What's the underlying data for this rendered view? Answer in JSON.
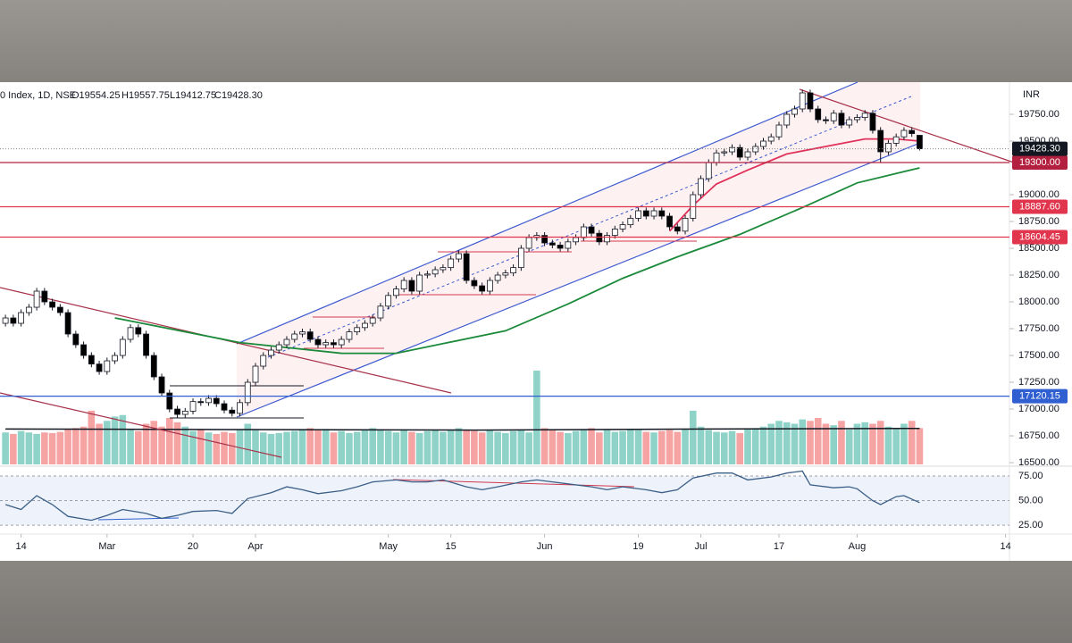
{
  "chart_data": {
    "type": "candlestick",
    "title": "0 Index, 1D, NSE",
    "ohlc_labels": [
      "O19554.25",
      "H19557.75",
      "L19412.75",
      "C19428.30"
    ],
    "currency": "INR",
    "xlim": [
      -0.7,
      128.5
    ],
    "xticks": [
      {
        "value": 2,
        "label": "14"
      },
      {
        "value": 13,
        "label": "Mar"
      },
      {
        "value": 24,
        "label": "20"
      },
      {
        "value": 32,
        "label": "Apr"
      },
      {
        "value": 49,
        "label": "May"
      },
      {
        "value": 57,
        "label": "15"
      },
      {
        "value": 69,
        "label": "Jun"
      },
      {
        "value": 81,
        "label": "19"
      },
      {
        "value": 89,
        "label": "Jul"
      },
      {
        "value": 99,
        "label": "17"
      },
      {
        "value": 109,
        "label": "Aug"
      },
      {
        "value": 128,
        "label": "14"
      }
    ],
    "ylim": [
      16467,
      20050
    ],
    "yticks": [
      {
        "value": 19750,
        "label": "19750.00"
      },
      {
        "value": 19500,
        "label": "19500.00"
      },
      {
        "value": 19000,
        "label": "19000.00"
      },
      {
        "value": 18750,
        "label": "18750.00"
      },
      {
        "value": 18500,
        "label": "18500.00"
      },
      {
        "value": 18250,
        "label": "18250.00"
      },
      {
        "value": 18000,
        "label": "18000.00"
      },
      {
        "value": 17750,
        "label": "17750.00"
      },
      {
        "value": 17500,
        "label": "17500.00"
      },
      {
        "value": 17250,
        "label": "17250.00"
      },
      {
        "value": 17000,
        "label": "17000.00"
      },
      {
        "value": 16750,
        "label": "16750.00"
      },
      {
        "value": 16500,
        "label": "16500.00"
      }
    ],
    "grid": false,
    "up_color": "#ffffff",
    "down_color": "#000000",
    "candles": {
      "x": [
        0,
        1,
        2,
        3,
        4,
        5,
        6,
        7,
        8,
        9,
        10,
        11,
        12,
        13,
        14,
        15,
        16,
        17,
        18,
        19,
        20,
        21,
        22,
        23,
        24,
        25,
        26,
        27,
        28,
        29,
        30,
        31,
        32,
        33,
        34,
        35,
        36,
        37,
        38,
        39,
        40,
        41,
        42,
        43,
        44,
        45,
        46,
        47,
        48,
        49,
        50,
        51,
        52,
        53,
        54,
        55,
        56,
        57,
        58,
        59,
        60,
        61,
        62,
        63,
        64,
        65,
        66,
        67,
        68,
        69,
        70,
        71,
        72,
        73,
        74,
        75,
        76,
        77,
        78,
        79,
        80,
        81,
        82,
        83,
        84,
        85,
        86,
        87,
        88,
        89,
        90,
        91,
        92,
        93,
        94,
        95,
        96,
        97,
        98,
        99,
        100,
        101,
        102,
        103,
        104,
        105,
        106,
        107,
        108,
        109,
        110,
        111,
        112,
        113,
        114,
        115,
        116,
        117
      ],
      "open": [
        17800,
        17850,
        17800,
        17900,
        17950,
        18100,
        18000,
        17950,
        17900,
        17700,
        17600,
        17500,
        17420,
        17350,
        17450,
        17500,
        17650,
        17760,
        17700,
        17500,
        17300,
        17150,
        17000,
        16950,
        16980,
        17070,
        17060,
        17100,
        17050,
        16990,
        16960,
        17060,
        17250,
        17400,
        17500,
        17550,
        17600,
        17650,
        17700,
        17720,
        17650,
        17600,
        17620,
        17600,
        17650,
        17720,
        17760,
        17800,
        17850,
        17960,
        18060,
        18120,
        18200,
        18100,
        18250,
        18260,
        18300,
        18320,
        18400,
        18450,
        18200,
        18150,
        18100,
        18200,
        18250,
        18270,
        18320,
        18500,
        18600,
        18620,
        18550,
        18530,
        18500,
        18560,
        18600,
        18700,
        18640,
        18560,
        18620,
        18680,
        18720,
        18780,
        18850,
        18800,
        18850,
        18800,
        18700,
        18660,
        18780,
        19000,
        19150,
        19300,
        19390,
        19400,
        19440,
        19350,
        19400,
        19450,
        19500,
        19540,
        19650,
        19750,
        19800,
        19950,
        19800,
        19700,
        19690,
        19760,
        19650,
        19700,
        19720,
        19760,
        19600,
        19400,
        19480,
        19540,
        19600,
        19554.25
      ],
      "high": [
        17880,
        17880,
        17930,
        17980,
        18130,
        18130,
        18030,
        17980,
        17930,
        17730,
        17630,
        17530,
        17450,
        17480,
        17530,
        17680,
        17790,
        17790,
        17730,
        17530,
        17330,
        17180,
        17030,
        17010,
        17100,
        17100,
        17130,
        17130,
        17080,
        17020,
        17090,
        17280,
        17430,
        17530,
        17580,
        17630,
        17680,
        17730,
        17750,
        17750,
        17680,
        17650,
        17650,
        17680,
        17750,
        17790,
        17830,
        17880,
        17990,
        18090,
        18150,
        18230,
        18230,
        18280,
        18290,
        18330,
        18350,
        18430,
        18480,
        18480,
        18230,
        18180,
        18230,
        18280,
        18300,
        18350,
        18530,
        18630,
        18650,
        18650,
        18580,
        18560,
        18590,
        18630,
        18730,
        18730,
        18670,
        18650,
        18710,
        18750,
        18810,
        18880,
        18880,
        18880,
        18880,
        18830,
        18730,
        18810,
        19030,
        19180,
        19330,
        19420,
        19430,
        19470,
        19470,
        19430,
        19480,
        19530,
        19570,
        19680,
        19780,
        19830,
        19980,
        19980,
        19830,
        19730,
        19790,
        19790,
        19730,
        19750,
        19790,
        19790,
        19630,
        19510,
        19570,
        19630,
        19630,
        19557.75
      ],
      "low": [
        17770,
        17770,
        17770,
        17870,
        17920,
        17970,
        17920,
        17870,
        17670,
        17570,
        17470,
        17390,
        17320,
        17320,
        17420,
        17470,
        17620,
        17670,
        17470,
        17270,
        17120,
        16970,
        16920,
        16920,
        16950,
        17030,
        17030,
        17020,
        16960,
        16930,
        16930,
        17030,
        17220,
        17370,
        17470,
        17520,
        17570,
        17620,
        17670,
        17620,
        17570,
        17570,
        17570,
        17570,
        17620,
        17690,
        17730,
        17770,
        17820,
        17930,
        18030,
        18090,
        18070,
        18070,
        18220,
        18230,
        18270,
        18290,
        18370,
        18170,
        18120,
        18070,
        18070,
        18170,
        18220,
        18240,
        18290,
        18470,
        18570,
        18520,
        18500,
        18470,
        18470,
        18530,
        18570,
        18610,
        18530,
        18530,
        18590,
        18650,
        18690,
        18750,
        18770,
        18770,
        18770,
        18670,
        18630,
        18630,
        18750,
        18970,
        19120,
        19270,
        19360,
        19370,
        19320,
        19320,
        19370,
        19420,
        19470,
        19510,
        19620,
        19720,
        19770,
        19770,
        19670,
        19660,
        19660,
        19620,
        19620,
        19670,
        19690,
        19570,
        19300,
        19370,
        19450,
        19510,
        19540,
        19412.75
      ],
      "close": [
        17850,
        17800,
        17900,
        17950,
        18100,
        18000,
        17950,
        17900,
        17700,
        17600,
        17500,
        17420,
        17350,
        17450,
        17500,
        17650,
        17760,
        17700,
        17500,
        17300,
        17150,
        17000,
        16950,
        16980,
        17070,
        17060,
        17100,
        17050,
        16990,
        16960,
        17060,
        17250,
        17400,
        17500,
        17550,
        17600,
        17650,
        17700,
        17720,
        17650,
        17600,
        17620,
        17600,
        17650,
        17720,
        17760,
        17800,
        17850,
        17960,
        18060,
        18120,
        18200,
        18100,
        18250,
        18260,
        18300,
        18320,
        18400,
        18450,
        18200,
        18150,
        18100,
        18200,
        18250,
        18270,
        18320,
        18500,
        18600,
        18620,
        18550,
        18530,
        18500,
        18560,
        18600,
        18700,
        18640,
        18560,
        18620,
        18680,
        18720,
        18780,
        18850,
        18800,
        18850,
        18800,
        18700,
        18660,
        18780,
        19000,
        19150,
        19300,
        19390,
        19400,
        19440,
        19350,
        19400,
        19450,
        19500,
        19540,
        19650,
        19750,
        19800,
        19950,
        19800,
        19700,
        19690,
        19760,
        19650,
        19700,
        19720,
        19760,
        19600,
        19400,
        19480,
        19540,
        19600,
        19570,
        19428.3
      ]
    },
    "moving_averages": [
      {
        "color": "#1b8a3a",
        "x": [
          14,
          30,
          43,
          50,
          56,
          64,
          72,
          79,
          86,
          94,
          102,
          109,
          117
        ],
        "values": [
          17850,
          17620,
          17520,
          17520,
          17610,
          17730,
          17980,
          18220,
          18420,
          18630,
          18880,
          19110,
          19250
        ]
      },
      {
        "color": "#e0325a",
        "x": [
          85,
          88,
          91,
          95,
          100,
          105,
          110,
          114,
          117
        ],
        "values": [
          18660,
          18900,
          19100,
          19230,
          19380,
          19450,
          19520,
          19520,
          19500
        ]
      }
    ],
    "price_lines": [
      {
        "value": 19300,
        "label": "19300.00",
        "color": "#b3203f"
      },
      {
        "value": 18887.6,
        "label": "18887.60",
        "color": "#e0354d"
      },
      {
        "value": 18604.45,
        "label": "18604.45",
        "color": "#e0354d"
      },
      {
        "value": 17120.15,
        "label": "17120.15",
        "color": "#2f5fd0"
      }
    ],
    "last_price": {
      "value": 19428.3,
      "label": "19428.30",
      "color": "#131722"
    },
    "volume": {
      "vlim": [
        0,
        400
      ],
      "up_color": "#8fd3c8",
      "down_color": "#f5a3a3",
      "values": [
        110,
        105,
        115,
        110,
        105,
        110,
        108,
        112,
        120,
        125,
        130,
        185,
        140,
        150,
        165,
        170,
        120,
        115,
        140,
        150,
        130,
        160,
        145,
        130,
        115,
        120,
        110,
        105,
        112,
        108,
        120,
        140,
        118,
        110,
        105,
        108,
        112,
        115,
        120,
        125,
        118,
        122,
        110,
        115,
        108,
        112,
        118,
        125,
        120,
        115,
        110,
        118,
        112,
        108,
        115,
        120,
        112,
        118,
        125,
        120,
        115,
        110,
        118,
        112,
        108,
        115,
        120,
        110,
        323,
        125,
        118,
        112,
        108,
        115,
        120,
        125,
        110,
        118,
        112,
        115,
        120,
        118,
        112,
        110,
        115,
        118,
        112,
        120,
        185,
        130,
        118,
        112,
        110,
        115,
        108,
        120,
        125,
        130,
        140,
        150,
        145,
        140,
        155,
        150,
        160,
        140,
        135,
        150,
        120,
        140,
        145,
        140,
        150,
        130,
        125,
        140,
        150,
        125
      ],
      "ma": {
        "color": "#131722",
        "x": [
          0,
          30,
          60,
          90,
          117
        ],
        "values": [
          122,
          120,
          118,
          122,
          124
        ]
      }
    },
    "rsi": {
      "color": "#3b5f86",
      "ylim": [
        16,
        85
      ],
      "yticks": [
        {
          "value": 75,
          "label": "75.00"
        },
        {
          "value": 50,
          "label": "50.00"
        },
        {
          "value": 25,
          "label": "25.00"
        }
      ],
      "x": [
        0,
        2,
        4,
        6,
        8,
        11,
        13,
        15,
        18,
        20,
        22,
        24,
        27,
        29,
        31,
        34,
        36,
        38,
        40,
        43,
        45,
        47,
        50,
        52,
        54,
        56,
        59,
        61,
        63,
        66,
        68,
        70,
        72,
        75,
        77,
        79,
        82,
        84,
        86,
        88,
        91,
        93,
        95,
        98,
        100,
        102,
        103,
        106,
        108,
        109,
        111,
        112,
        114,
        115,
        117
      ],
      "values": [
        46,
        41,
        55,
        46,
        34,
        30,
        35,
        41,
        37,
        32,
        35,
        39,
        40,
        37,
        52,
        58,
        64,
        61,
        57,
        60,
        64,
        69,
        71,
        69,
        69,
        71,
        64,
        61,
        64,
        69,
        71,
        69,
        67,
        64,
        61,
        64,
        61,
        58,
        61,
        73,
        78,
        78,
        71,
        74,
        78,
        80,
        66,
        63,
        64,
        62,
        50,
        46,
        54,
        55,
        48
      ]
    }
  }
}
